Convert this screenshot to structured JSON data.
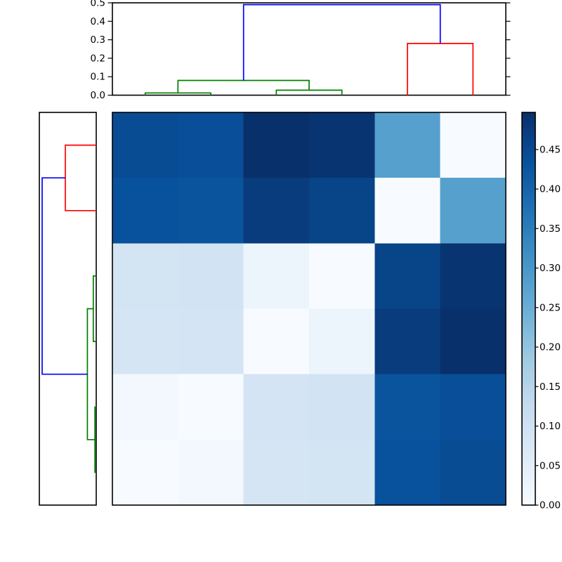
{
  "figure": {
    "background": "#ffffff"
  },
  "chart_data": {
    "type": "heatmap",
    "title": "",
    "description_grid": "6x6 symmetric distance matrix with hierarchical clustering dendrograms on top (columns) and left (rows), plus vertical colorbar on right",
    "colormap": {
      "name": "Blues",
      "anchors": [
        [
          0.0,
          "#f7fbff"
        ],
        [
          0.125,
          "#deebf7"
        ],
        [
          0.25,
          "#c6dbef"
        ],
        [
          0.375,
          "#9ecae1"
        ],
        [
          0.5,
          "#6baed6"
        ],
        [
          0.625,
          "#4292c6"
        ],
        [
          0.75,
          "#2171b5"
        ],
        [
          0.875,
          "#08519c"
        ],
        [
          1.0,
          "#08306b"
        ]
      ]
    },
    "vmin": 0.0,
    "vmax": 0.497,
    "col_order": [
      0,
      1,
      2,
      3,
      4,
      5
    ],
    "row_order": [
      5,
      4,
      3,
      2,
      1,
      0
    ],
    "matrix": [
      [
        0.445,
        0.44,
        0.497,
        0.49,
        0.28,
        0.0
      ],
      [
        0.435,
        0.43,
        0.475,
        0.46,
        0.0,
        0.28
      ],
      [
        0.09,
        0.092,
        0.027,
        0.0,
        0.46,
        0.49
      ],
      [
        0.086,
        0.088,
        0.0,
        0.027,
        0.475,
        0.497
      ],
      [
        0.012,
        0.0,
        0.088,
        0.092,
        0.43,
        0.44
      ],
      [
        0.0,
        0.012,
        0.086,
        0.09,
        0.435,
        0.445
      ]
    ],
    "linkage_merges": [
      {
        "members": [
          "leaf0",
          "leaf1"
        ],
        "distance": 0.012
      },
      {
        "members": [
          "leaf2",
          "leaf3"
        ],
        "distance": 0.027
      },
      {
        "members": [
          "leaf0+1",
          "leaf2+3"
        ],
        "distance": 0.08
      },
      {
        "members": [
          "leaf4",
          "leaf5"
        ],
        "distance": 0.28
      },
      {
        "members": [
          "leaf0+1+2+3",
          "leaf4+5"
        ],
        "distance": 0.49
      }
    ],
    "link_colors": {
      "green": "#008000",
      "red": "#ff0000",
      "blue": "#0000ff"
    },
    "top_dendrogram": {
      "orientation": "top",
      "ylim": [
        0.0,
        0.5
      ],
      "axis_ticks": {
        "values": [
          0.0,
          0.1,
          0.2,
          0.3,
          0.4,
          0.5
        ],
        "labels": [
          "0.0",
          "0.1",
          "0.2",
          "0.3",
          "0.4",
          "0.5"
        ]
      },
      "links": [
        {
          "color": "green",
          "x1": 0.5,
          "y1": 0.0,
          "x2": 1.5,
          "y2": 0.0,
          "h": 0.012
        },
        {
          "color": "green",
          "x1": 2.5,
          "y1": 0.0,
          "x2": 3.5,
          "y2": 0.0,
          "h": 0.027
        },
        {
          "color": "green",
          "x1": 1.0,
          "y1": 0.012,
          "x2": 3.0,
          "y2": 0.027,
          "h": 0.08
        },
        {
          "color": "red",
          "x1": 4.5,
          "y1": 0.0,
          "x2": 5.5,
          "y2": 0.0,
          "h": 0.28
        },
        {
          "color": "blue",
          "x1": 2.0,
          "y1": 0.08,
          "x2": 5.0,
          "y2": 0.28,
          "h": 0.49
        }
      ]
    },
    "left_dendrogram": {
      "orientation": "left",
      "links": [
        {
          "color": "red",
          "x1": 0.5,
          "y1": 0.0,
          "x2": 1.5,
          "y2": 0.0,
          "h": 0.28
        },
        {
          "color": "green",
          "x1": 2.5,
          "y1": 0.0,
          "x2": 3.5,
          "y2": 0.0,
          "h": 0.027
        },
        {
          "color": "green",
          "x1": 4.5,
          "y1": 0.0,
          "x2": 5.5,
          "y2": 0.0,
          "h": 0.012
        },
        {
          "color": "green",
          "x1": 3.0,
          "y1": 0.027,
          "x2": 5.0,
          "y2": 0.012,
          "h": 0.08
        },
        {
          "color": "blue",
          "x1": 1.0,
          "y1": 0.28,
          "x2": 4.0,
          "y2": 0.08,
          "h": 0.49
        }
      ]
    },
    "colorbar": {
      "range": [
        0.0,
        0.497
      ],
      "tick_values": [
        0.0,
        0.05,
        0.1,
        0.15,
        0.2,
        0.25,
        0.3,
        0.35,
        0.4,
        0.45
      ],
      "tick_labels": [
        "0.00",
        "0.05",
        "0.10",
        "0.15",
        "0.20",
        "0.25",
        "0.30",
        "0.35",
        "0.40",
        "0.45"
      ]
    }
  }
}
